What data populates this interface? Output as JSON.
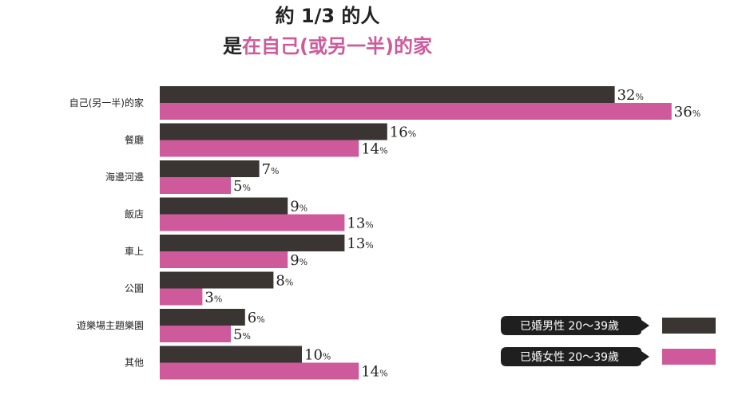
{
  "colors": {
    "men": "#3a3433",
    "women": "#cf5a9b",
    "title_highlight": "#cf5a9b",
    "title_dark": "#222222"
  },
  "chart_data": {
    "type": "bar",
    "orientation": "horizontal",
    "title_line1": "約 1/3 的人",
    "title_line2_prefix": "是",
    "title_line2_highlight": "在自己(或另一半)的家",
    "unit": "%",
    "xlim": [
      0,
      36
    ],
    "grid": false,
    "legend_position": "bottom-right",
    "categories": [
      "自己(另一半)的家",
      "餐廳",
      "海邊河邊",
      "飯店",
      "車上",
      "公園",
      "遊樂場主題樂園",
      "其他"
    ],
    "series": [
      {
        "name": "已婚男性 20～39歲",
        "values": [
          32,
          16,
          7,
          9,
          13,
          8,
          6,
          10
        ]
      },
      {
        "name": "已婚女性 20～39歲",
        "values": [
          36,
          14,
          5,
          13,
          9,
          3,
          5,
          14
        ]
      }
    ]
  }
}
